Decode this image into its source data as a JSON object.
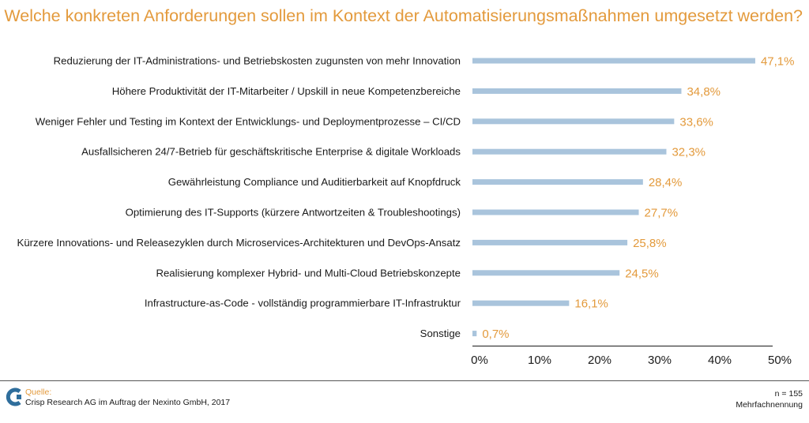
{
  "chart_data": {
    "type": "bar",
    "orientation": "horizontal",
    "title": "Welche konkreten Anforderungen sollen im Kontext der Automatisierungsmaßnahmen umgesetzt werden?",
    "categories": [
      "Reduzierung der IT-Administrations- und Betriebskosten zugunsten von mehr Innovation",
      "Höhere Produktivität der IT-Mitarbeiter / Upskill in neue Kompetenzbereiche",
      "Weniger Fehler und Testing im Kontext der Entwicklungs- und Deploymentprozesse – CI/CD",
      "Ausfallsicheren 24/7-Betrieb für geschäftskritische Enterprise & digitale Workloads",
      "Gewährleistung Compliance und Auditierbarkeit auf Knopfdruck",
      "Optimierung des IT-Supports (kürzere Antwortzeiten & Troubleshootings)",
      "Kürzere Innovations- und Releasezyklen durch Microservices-Architekturen und DevOps-Ansatz",
      "Realisierung komplexer Hybrid- und Multi-Cloud Betriebskonzepte",
      "Infrastructure-as-Code - vollständig programmierbare IT-Infrastruktur",
      "Sonstige"
    ],
    "values": [
      47.1,
      34.8,
      33.6,
      32.3,
      28.4,
      27.7,
      25.8,
      24.5,
      16.1,
      0.7
    ],
    "value_labels": [
      "47,1%",
      "34,8%",
      "33,6%",
      "32,3%",
      "28,4%",
      "27,7%",
      "25,8%",
      "24,5%",
      "16,1%",
      "0,7%"
    ],
    "xlim": [
      0,
      50
    ],
    "x_ticks": [
      0,
      10,
      20,
      30,
      40,
      50
    ],
    "x_tick_labels": [
      "0%",
      "10%",
      "20%",
      "30%",
      "40%",
      "50%"
    ],
    "grid": false,
    "bar_color": "#a9c4dc",
    "value_label_color": "#e39a3c",
    "title_color": "#e39a3c"
  },
  "footer": {
    "source_label": "Quelle:",
    "source_text": "Crisp Research AG im Auftrag der Nexinto GmbH, 2017",
    "sample_size": "n = 155",
    "note": "Mehrfachnennung",
    "logo_icon": "crisp-research-logo-icon"
  }
}
